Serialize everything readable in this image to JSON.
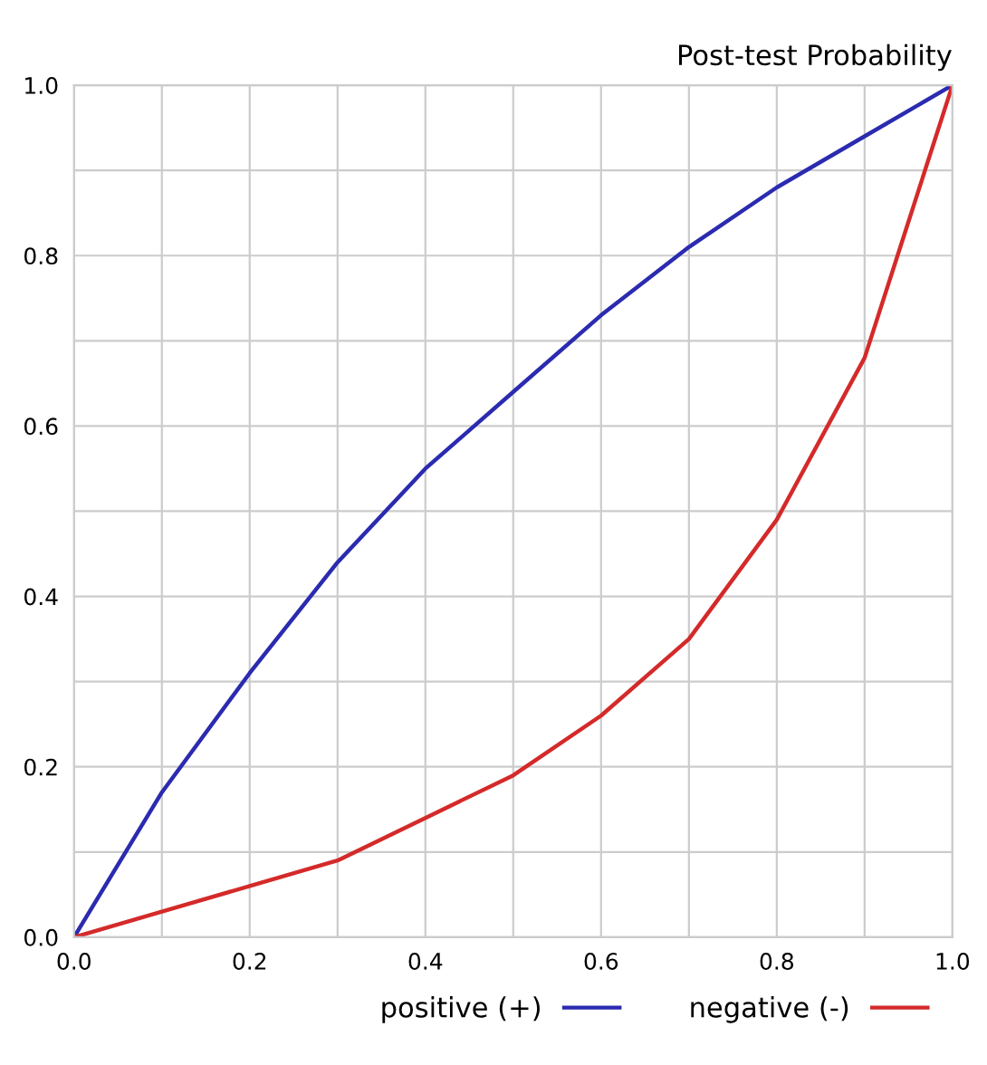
{
  "chart_data": {
    "type": "line",
    "title": "Post-test Probability",
    "x": [
      0,
      0.1,
      0.2,
      0.3,
      0.4,
      0.5,
      0.6,
      0.7,
      0.8,
      0.9,
      1.0
    ],
    "series": [
      {
        "name": "positive (+)",
        "color": "#2b2bb0",
        "values": [
          0,
          0.17,
          0.31,
          0.44,
          0.55,
          0.64,
          0.73,
          0.81,
          0.88,
          0.94,
          1.0
        ]
      },
      {
        "name": "negative (-)",
        "color": "#d42a2a",
        "values": [
          0,
          0.03,
          0.06,
          0.09,
          0.14,
          0.19,
          0.26,
          0.35,
          0.49,
          0.68,
          1.0
        ]
      }
    ],
    "xlim": [
      0,
      1.0
    ],
    "ylim": [
      0,
      1.0
    ],
    "xticks": [
      {
        "value": 0,
        "label": "0.0"
      },
      {
        "value": 0.1,
        "label": null
      },
      0.2,
      {
        "value": 0.3,
        "label": null
      },
      0.4,
      {
        "value": 0.5,
        "label": null
      },
      0.6,
      {
        "value": 0.7,
        "label": null
      },
      0.8,
      {
        "value": 0.9,
        "label": null
      },
      {
        "value": 1.0,
        "label": "1.0"
      }
    ],
    "yticks": [
      {
        "value": 0,
        "label": "0.0"
      },
      {
        "value": 0.1,
        "label": null
      },
      0.2,
      {
        "value": 0.3,
        "label": null
      },
      0.4,
      {
        "value": 0.5,
        "label": null
      },
      0.6,
      {
        "value": 0.7,
        "label": null
      },
      0.8,
      {
        "value": 0.9,
        "label": null
      },
      {
        "value": 1.0,
        "label": "1.0"
      }
    ],
    "grid": true,
    "legend": "bottom",
    "line_style": "solid"
  }
}
